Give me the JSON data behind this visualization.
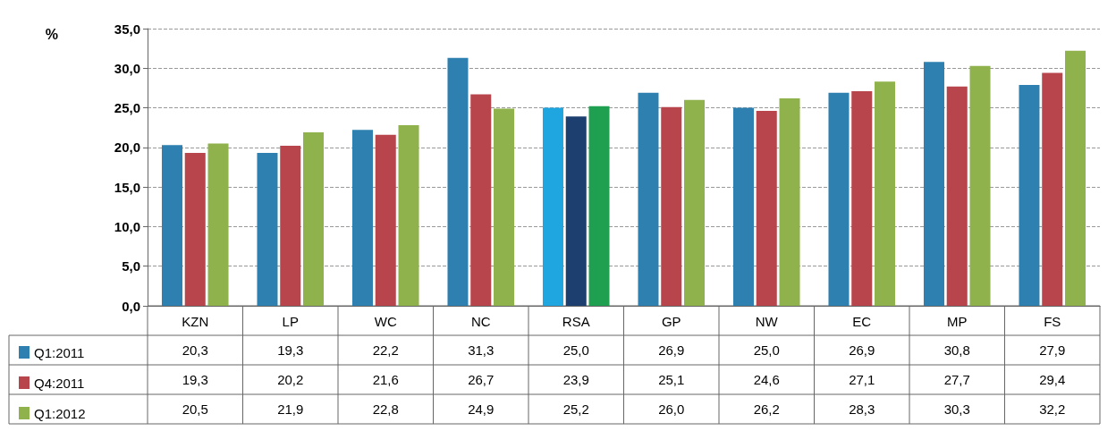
{
  "chart_data": {
    "type": "bar",
    "ylabel": "%",
    "categories": [
      "KZN",
      "LP",
      "WC",
      "NC",
      "RSA",
      "GP",
      "NW",
      "EC",
      "MP",
      "FS"
    ],
    "series": [
      {
        "name": "Q1:2011",
        "color": "#2e80b0",
        "colors": [
          "#2e80b0",
          "#2e80b0",
          "#2e80b0",
          "#2e80b0",
          "#1fa6e0",
          "#2e80b0",
          "#2e80b0",
          "#2e80b0",
          "#2e80b0",
          "#2e80b0"
        ],
        "values": [
          20.3,
          19.3,
          22.2,
          31.3,
          25.0,
          26.9,
          25.0,
          26.9,
          30.8,
          27.9
        ],
        "value_labels": [
          "20,3",
          "19,3",
          "22,2",
          "31,3",
          "25,0",
          "26,9",
          "25,0",
          "26,9",
          "30,8",
          "27,9"
        ]
      },
      {
        "name": "Q4:2011",
        "color": "#b8444c",
        "colors": [
          "#b8444c",
          "#b8444c",
          "#b8444c",
          "#b8444c",
          "#1d3f70",
          "#b8444c",
          "#b8444c",
          "#b8444c",
          "#b8444c",
          "#b8444c"
        ],
        "values": [
          19.3,
          20.2,
          21.6,
          26.7,
          23.9,
          25.1,
          24.6,
          27.1,
          27.7,
          29.4
        ],
        "value_labels": [
          "19,3",
          "20,2",
          "21,6",
          "26,7",
          "23,9",
          "25,1",
          "24,6",
          "27,1",
          "27,7",
          "29,4"
        ]
      },
      {
        "name": "Q1:2012",
        "color": "#8fb24c",
        "colors": [
          "#8fb24c",
          "#8fb24c",
          "#8fb24c",
          "#8fb24c",
          "#1fa050",
          "#8fb24c",
          "#8fb24c",
          "#8fb24c",
          "#8fb24c",
          "#8fb24c"
        ],
        "values": [
          20.5,
          21.9,
          22.8,
          24.9,
          25.2,
          26.0,
          26.2,
          28.3,
          30.3,
          32.2
        ],
        "value_labels": [
          "20,5",
          "21,9",
          "22,8",
          "24,9",
          "25,2",
          "26,0",
          "26,2",
          "28,3",
          "30,3",
          "32,2"
        ]
      }
    ],
    "ylim": [
      0,
      35
    ],
    "yticks": [
      {
        "value": 0,
        "label": "0,0"
      },
      {
        "value": 5,
        "label": "5,0"
      },
      {
        "value": 10,
        "label": "10,0"
      },
      {
        "value": 15,
        "label": "15,0"
      },
      {
        "value": 20,
        "label": "20,0"
      },
      {
        "value": 25,
        "label": "25,0"
      },
      {
        "value": 30,
        "label": "30,0"
      },
      {
        "value": 35,
        "label": "35,0"
      }
    ],
    "grid": "y",
    "legend": "bottom left"
  }
}
